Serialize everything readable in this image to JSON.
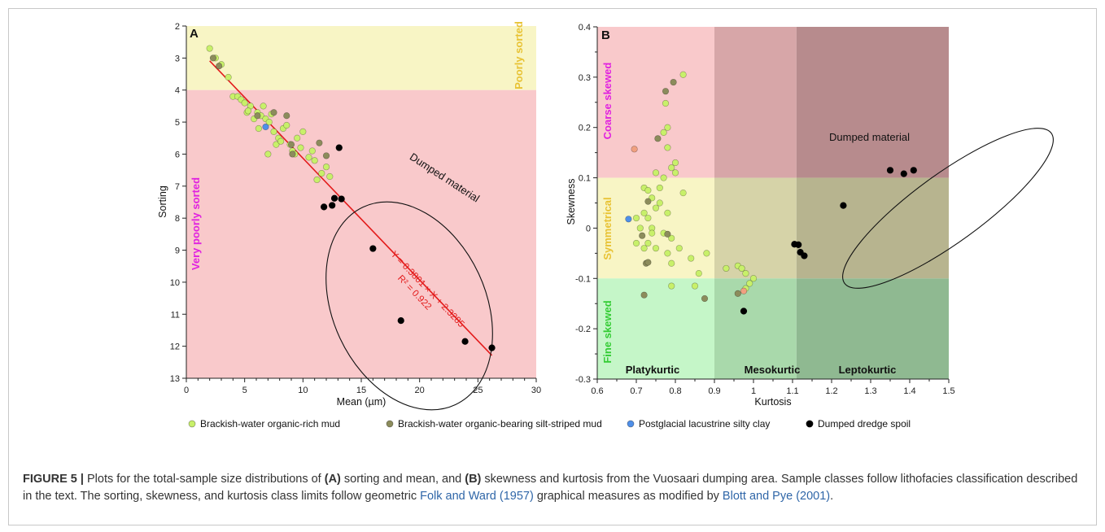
{
  "colors": {
    "pink": "#f9c9cb",
    "yellow": "#f8f5c5",
    "green": "#c5f6c8",
    "meso_pink": "#d7a6a8",
    "lepto_pink": "#b78b8d",
    "meso_yellow": "#d6d3a8",
    "lepto_yellow": "#b7b48f",
    "meso_green": "#a9d9ab",
    "lepto_green": "#8fb991",
    "regression": "#e31b1b",
    "brackish_rich": "#c8f06a",
    "brackish_bearing": "#8c8c5c",
    "lacustrine": "#4f8fe8",
    "dumped": "#000000",
    "label_magenta": "#e020e0",
    "label_yellow": "#e8c233",
    "label_green": "#33cc33"
  },
  "legend": [
    {
      "label": "Brackish-water organic-rich mud",
      "color": "#c8f06a"
    },
    {
      "label": "Brackish-water organic-bearing silt-striped mud",
      "color": "#8c8c5c"
    },
    {
      "label": "Postglacial lacustrine silty clay",
      "color": "#4f8fe8"
    },
    {
      "label": "Dumped dredge spoil",
      "color": "#000000"
    }
  ],
  "chart_data": [
    {
      "panel": "A",
      "type": "scatter",
      "xlabel": "Mean (µm)",
      "ylabel": "Sorting",
      "xlim": [
        0,
        30
      ],
      "ylim": [
        2,
        13
      ],
      "y_inverted": true,
      "xticks": [
        "0",
        "5",
        "10",
        "15",
        "20",
        "25",
        "30"
      ],
      "yticks": [
        "2",
        "3",
        "4",
        "5",
        "6",
        "7",
        "8",
        "9",
        "10",
        "11",
        "12",
        "13"
      ],
      "bands": [
        {
          "y_from": 2,
          "y_to": 4,
          "label": "Poorly sorted"
        },
        {
          "y_from": 4,
          "y_to": 13,
          "label": "Very poorly sorted"
        }
      ],
      "annotation": "Dumped material",
      "regression": {
        "eq": "Y = 0.3801 × X + 2.3285",
        "r2": "R² = 0.922",
        "x_range": [
          2,
          26.2
        ]
      },
      "series": [
        {
          "name": "Brackish-water organic-rich mud",
          "points": [
            [
              2,
              2.7
            ],
            [
              2.5,
              3
            ],
            [
              3,
              3.2
            ],
            [
              3.6,
              3.6
            ],
            [
              4,
              4.2
            ],
            [
              4.4,
              4.2
            ],
            [
              4.7,
              4.3
            ],
            [
              5,
              4.4
            ],
            [
              5.2,
              4.7
            ],
            [
              5.5,
              4.5
            ],
            [
              5.8,
              4.9
            ],
            [
              6.1,
              4.7
            ],
            [
              6.4,
              4.8
            ],
            [
              6.6,
              4.5
            ],
            [
              6.8,
              4.9
            ],
            [
              7.1,
              5
            ],
            [
              7.3,
              4.75
            ],
            [
              7.5,
              5.3
            ],
            [
              7.7,
              5.7
            ],
            [
              7.9,
              5.5
            ],
            [
              8.1,
              5.6
            ],
            [
              8.3,
              5.2
            ],
            [
              8.6,
              5.1
            ],
            [
              8.9,
              5.7
            ],
            [
              9.1,
              5.9
            ],
            [
              9.3,
              6
            ],
            [
              9.5,
              5.5
            ],
            [
              9.8,
              5.8
            ],
            [
              10,
              5.3
            ],
            [
              10.5,
              6.1
            ],
            [
              10.8,
              5.9
            ],
            [
              11,
              6.2
            ],
            [
              11.2,
              6.8
            ],
            [
              11.6,
              6.6
            ],
            [
              12,
              6.4
            ],
            [
              12.3,
              6.7
            ],
            [
              7,
              6
            ],
            [
              5.3,
              4.65
            ],
            [
              6.2,
              5.2
            ]
          ]
        },
        {
          "name": "Brackish-water organic-bearing silt-striped mud",
          "points": [
            [
              2.3,
              3
            ],
            [
              2.8,
              3.25
            ],
            [
              7.5,
              4.7
            ],
            [
              8.6,
              4.8
            ],
            [
              9,
              5.7
            ],
            [
              9.1,
              6
            ],
            [
              11.4,
              5.65
            ],
            [
              12,
              6.05
            ],
            [
              6.1,
              4.8
            ]
          ]
        },
        {
          "name": "Postglacial lacustrine silty clay",
          "points": [
            [
              6.8,
              5.15
            ]
          ]
        },
        {
          "name": "Dumped dredge spoil",
          "points": [
            [
              11.8,
              7.65
            ],
            [
              12.5,
              7.6
            ],
            [
              12.7,
              7.38
            ],
            [
              13.3,
              7.4
            ],
            [
              13.1,
              5.8
            ],
            [
              16,
              8.95
            ],
            [
              18.4,
              11.2
            ],
            [
              23.9,
              11.85
            ],
            [
              26.2,
              12.05
            ]
          ]
        }
      ]
    },
    {
      "panel": "B",
      "type": "scatter",
      "xlabel": "Kurtosis",
      "ylabel": "Skewness",
      "xlim": [
        0.6,
        1.5
      ],
      "ylim": [
        -0.3,
        0.4
      ],
      "xticks": [
        "0.6",
        "0.7",
        "0.8",
        "0.9",
        "1",
        "1.1",
        "1.2",
        "1.3",
        "1.4",
        "1.5"
      ],
      "yticks": [
        "0.4",
        "0.3",
        "0.2",
        "0.1",
        "0",
        "-0.1",
        "-0.2",
        "-0.3"
      ],
      "side_labels": [
        "Coarse skewed",
        "Symmetrical",
        "Fine skewed"
      ],
      "bottom_labels": [
        "Platykurtic",
        "Mesokurtic",
        "Leptokurtic"
      ],
      "annotation": "Dumped material",
      "series": [
        {
          "name": "Brackish-water organic-rich mud",
          "points": [
            [
              0.82,
              0.305
            ],
            [
              0.775,
              0.248
            ],
            [
              0.78,
              0.2
            ],
            [
              0.77,
              0.19
            ],
            [
              0.78,
              0.16
            ],
            [
              0.8,
              0.13
            ],
            [
              0.79,
              0.12
            ],
            [
              0.8,
              0.11
            ],
            [
              0.75,
              0.11
            ],
            [
              0.77,
              0.1
            ],
            [
              0.76,
              0.08
            ],
            [
              0.82,
              0.07
            ],
            [
              0.72,
              0.08
            ],
            [
              0.73,
              0.075
            ],
            [
              0.74,
              0.06
            ],
            [
              0.76,
              0.05
            ],
            [
              0.75,
              0.04
            ],
            [
              0.78,
              0.03
            ],
            [
              0.72,
              0.03
            ],
            [
              0.73,
              0.02
            ],
            [
              0.7,
              0.02
            ],
            [
              0.71,
              0.0
            ],
            [
              0.74,
              0.0
            ],
            [
              0.77,
              -0.01
            ],
            [
              0.79,
              -0.02
            ],
            [
              0.73,
              -0.03
            ],
            [
              0.75,
              -0.04
            ],
            [
              0.78,
              -0.05
            ],
            [
              0.81,
              -0.04
            ],
            [
              0.7,
              -0.03
            ],
            [
              0.72,
              -0.04
            ],
            [
              0.84,
              -0.06
            ],
            [
              0.88,
              -0.05
            ],
            [
              0.79,
              -0.07
            ],
            [
              0.86,
              -0.09
            ],
            [
              0.85,
              -0.115
            ],
            [
              0.79,
              -0.115
            ],
            [
              0.93,
              -0.08
            ],
            [
              0.96,
              -0.075
            ],
            [
              0.97,
              -0.08
            ],
            [
              0.98,
              -0.09
            ],
            [
              0.99,
              -0.11
            ],
            [
              1.0,
              -0.1
            ],
            [
              0.98,
              -0.12
            ],
            [
              0.74,
              -0.01
            ]
          ]
        },
        {
          "name": "Brackish-water organic-bearing silt-striped mud",
          "points": [
            [
              0.775,
              0.272
            ],
            [
              0.795,
              0.29
            ],
            [
              0.755,
              0.178
            ],
            [
              0.73,
              0.053
            ],
            [
              0.715,
              -0.015
            ],
            [
              0.78,
              -0.012
            ],
            [
              0.725,
              -0.07
            ],
            [
              0.73,
              -0.068
            ],
            [
              0.72,
              -0.133
            ],
            [
              0.875,
              -0.14
            ],
            [
              0.96,
              -0.13
            ]
          ]
        },
        {
          "name": "Postglacial lacustrine silty clay",
          "points": [
            [
              0.68,
              0.018
            ]
          ]
        },
        {
          "name": "Dumped dredge spoil",
          "points": [
            [
              1.35,
              0.115
            ],
            [
              1.385,
              0.108
            ],
            [
              1.41,
              0.115
            ],
            [
              1.23,
              0.045
            ],
            [
              1.105,
              -0.032
            ],
            [
              1.115,
              -0.033
            ],
            [
              1.12,
              -0.048
            ],
            [
              1.13,
              -0.055
            ],
            [
              0.975,
              -0.165
            ]
          ]
        },
        {
          "name": "",
          "points": [
            [
              0.695,
              0.157
            ],
            [
              0.975,
              -0.125
            ]
          ]
        }
      ]
    }
  ],
  "caption": {
    "label": "FIGURE 5 |",
    "t1": " Plots for the total-sample size distributions of ",
    "b1": "(A)",
    "t2": " sorting and mean, and ",
    "b2": "(B)",
    "t3": " skewness and kurtosis from the Vuosaari dumping area. Sample classes follow lithofacies classification described in the text. The sorting, skewness, and kurtosis class limits follow geometric ",
    "ref1": "Folk and Ward (1957)",
    "t4": " graphical measures as modified by ",
    "ref2": "Blott and Pye (2001)",
    "t5": "."
  }
}
